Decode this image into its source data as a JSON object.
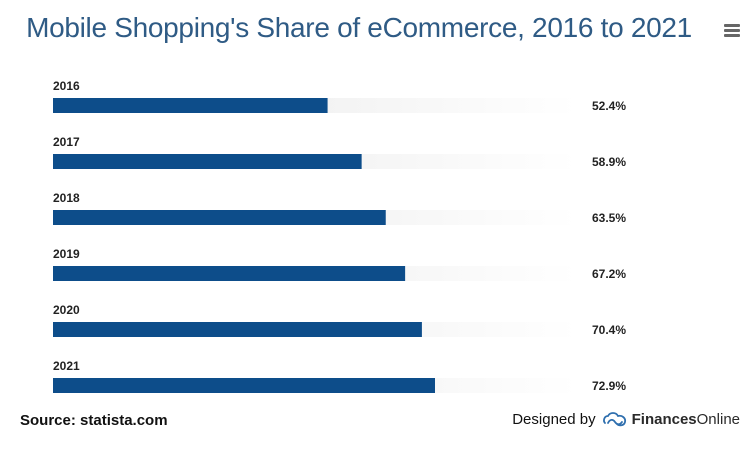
{
  "header": {
    "title": "Mobile Shopping's Share of eCommerce, 2016 to 2021",
    "menu_icon": "hamburger-menu-icon"
  },
  "chart_data": {
    "type": "bar",
    "orientation": "horizontal",
    "title": "Mobile Shopping's Share of eCommerce, 2016 to 2021",
    "categories": [
      "2016",
      "2017",
      "2018",
      "2019",
      "2020",
      "2021"
    ],
    "values": [
      52.4,
      58.9,
      63.5,
      67.2,
      70.4,
      72.9
    ],
    "value_labels": [
      "52.4%",
      "58.9%",
      "63.5%",
      "67.2%",
      "70.4%",
      "72.9%"
    ],
    "unit": "%",
    "xlim": [
      0,
      100
    ],
    "grid": false,
    "legend": "none",
    "colors": {
      "bar": "#0d4d8a",
      "track_start": "#e6e6e6",
      "track_end": "#ffffff"
    }
  },
  "footer": {
    "source": "Source: statista.com",
    "designed_by": "Designed by",
    "brand_part1": "Finances",
    "brand_part2": "Online",
    "logo_icon": "financesonline-logo-icon"
  }
}
